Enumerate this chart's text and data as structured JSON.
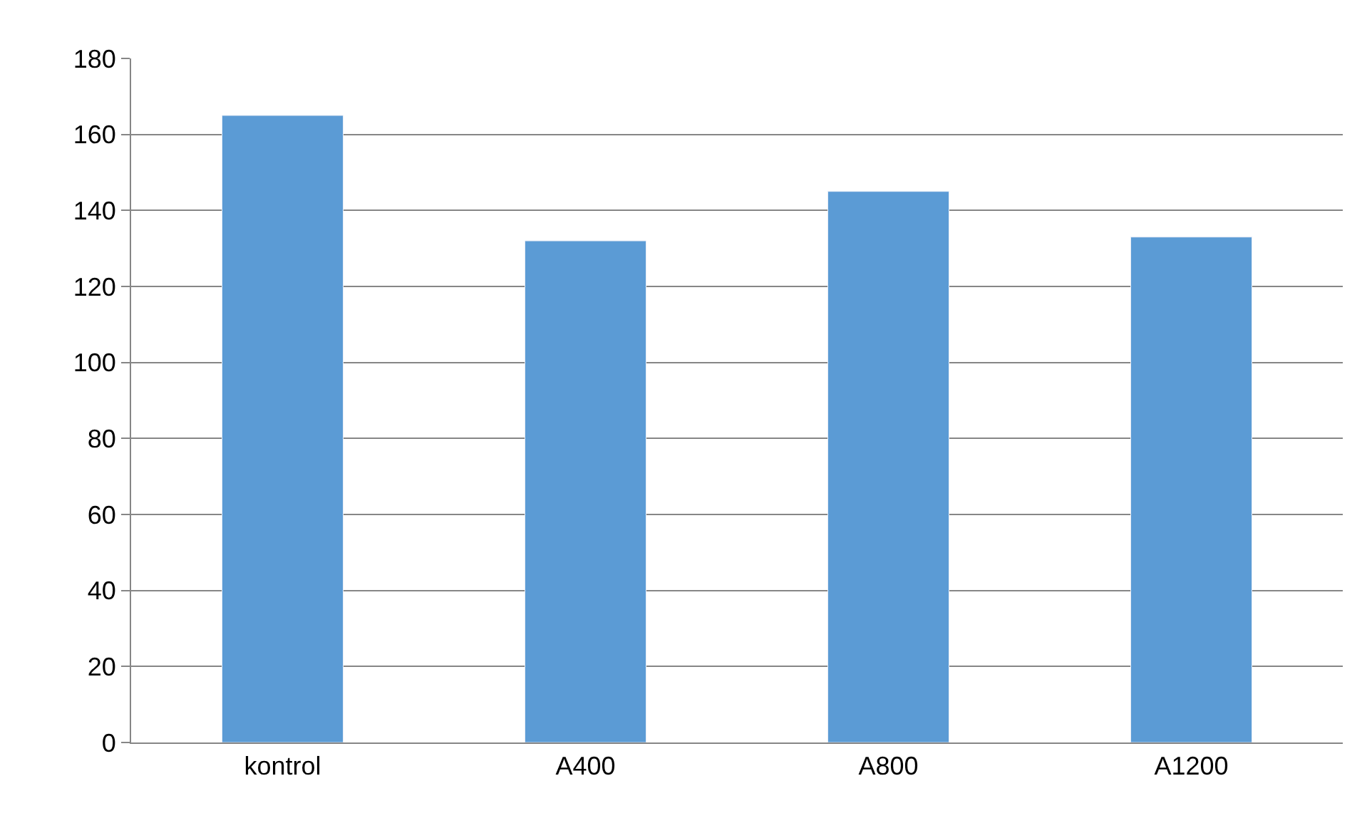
{
  "chart_data": {
    "type": "bar",
    "categories": [
      "kontrol",
      "A400",
      "A800",
      "A1200"
    ],
    "values": [
      165,
      132,
      145,
      133
    ],
    "color": "#5b9bd5",
    "ylim": [
      0,
      180
    ],
    "yticks": [
      0,
      20,
      40,
      60,
      80,
      100,
      120,
      140,
      160,
      180
    ],
    "grid": "y",
    "legend": false
  }
}
